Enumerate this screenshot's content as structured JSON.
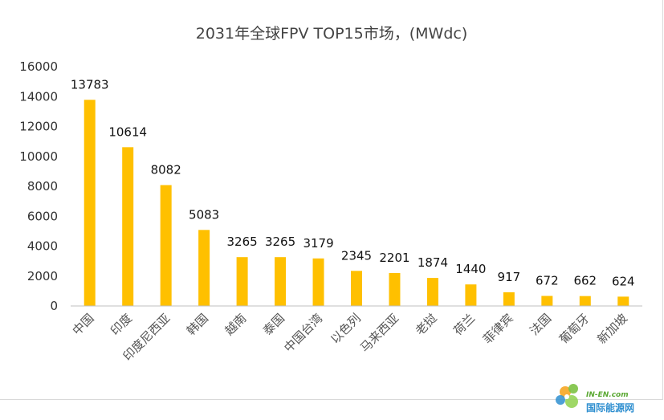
{
  "chart_data": {
    "type": "bar",
    "title": "2031年全球FPV TOP15市场，(MWdc)",
    "categories": [
      "中国",
      "印度",
      "印度尼西亚",
      "韩国",
      "越南",
      "泰国",
      "中国台湾",
      "以色列",
      "马来西亚",
      "老挝",
      "荷兰",
      "菲律宾",
      "法国",
      "葡萄牙",
      "新加坡"
    ],
    "values": [
      13783,
      10614,
      8082,
      5083,
      3265,
      3265,
      3179,
      2345,
      2201,
      1874,
      1440,
      917,
      672,
      662,
      624
    ],
    "ylim": [
      0,
      16000
    ],
    "yticks": [
      0,
      2000,
      4000,
      6000,
      8000,
      10000,
      12000,
      14000,
      16000
    ],
    "xlabel": "",
    "ylabel": "",
    "grid": false,
    "bar_color": "#FFC000"
  },
  "watermark": {
    "en": "IN-EN.com",
    "cn": "国际能源网"
  }
}
